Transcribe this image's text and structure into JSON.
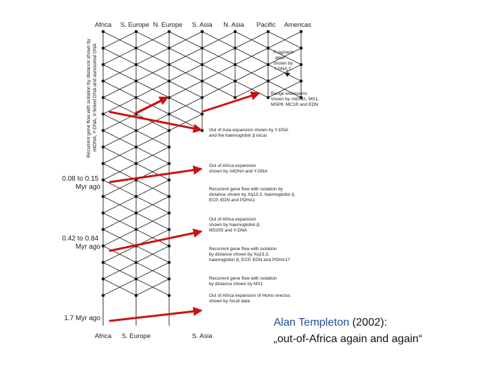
{
  "populations_top": [
    "Africa",
    "S. Europe",
    "N. Europe",
    "S. Asia",
    "N. Asia",
    "Pacific",
    "Americas"
  ],
  "populations_bottom": [
    "Africa",
    "S. Europe",
    "S. Asia"
  ],
  "vertical_label": [
    "Recurrent gene flow with isolation by distance shown by",
    "mtDNA, Y-DNA, X-linked DNA and autosomal DNA"
  ],
  "time_labels": [
    {
      "lines": [
        "0.08 to 0.15",
        "Myr ago"
      ]
    },
    {
      "lines": [
        "0.42 to 0.84",
        "Myr ago"
      ]
    },
    {
      "lines": [
        "1.7 Myr ago"
      ]
    }
  ],
  "annotations": [
    {
      "lines": [
        "Fragment-",
        "ation",
        "shown by",
        "Y-DNA ?"
      ]
    },
    {
      "lines": [
        "Range extensions",
        "shown by mtDNA, MX1,",
        "MSPθ, MC1R and EDN"
      ]
    },
    {
      "lines": [
        "Out of Asia expansion shown by Y-DNA",
        "and the haemoglobin β locus"
      ]
    },
    {
      "lines": [
        "Out of Africa expansion",
        "shown by mtDNA and Y-DNA"
      ]
    },
    {
      "lines": [
        "Recurrent gene flow with isolation by",
        "distance shown by Xq13.3, haemoglobin β,",
        "ECP, EDN and PDHA1"
      ]
    },
    {
      "lines": [
        "Out of Africa expansion",
        "shown by haemoglobin β,",
        "MS205 and Y-DNA"
      ]
    },
    {
      "lines": [
        "Recurrent gene flow with isolation",
        "by distance shown by Xq13.3,",
        "haemoglobin β, ECP, EDN and PDHA1?"
      ]
    },
    {
      "lines": [
        "Recurrent gene flow with isolation",
        "by distance shown by MX1"
      ]
    },
    {
      "lines": [
        "Out of Africa expansion of Homo erectus",
        "shown by fossil data"
      ]
    }
  ],
  "citation": {
    "author": "Alan Templeton",
    "year": " (2002):",
    "title": "„out-of-Africa again and again“"
  },
  "colors": {
    "lines": "#1a1a1a",
    "arrows": "#cc1111",
    "author": "#1f4e96"
  }
}
